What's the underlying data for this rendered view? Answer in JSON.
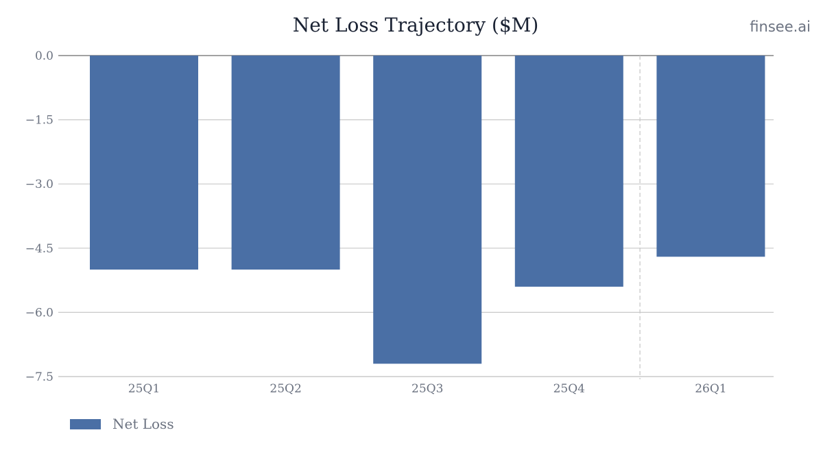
{
  "title": "Net Loss Trajectory ($M)",
  "brand": "finsee.ai",
  "colors": {
    "bar": "#4a6fa5",
    "grid": "#c8c8c8",
    "zero_line": "#6b6b6b",
    "divider": "#c8c8c8",
    "text": "#6b7280",
    "title": "#1a2233"
  },
  "chart_data": {
    "type": "bar",
    "title": "Net Loss Trajectory ($M)",
    "xlabel": "",
    "ylabel": "",
    "categories": [
      "25Q1",
      "25Q2",
      "25Q3",
      "25Q4",
      "26Q1"
    ],
    "series": [
      {
        "name": "Net Loss",
        "values": [
          -5.0,
          -5.0,
          -7.2,
          -5.4,
          -4.7
        ]
      }
    ],
    "ylim": [
      -7.5,
      0.0
    ],
    "yticks": [
      "0.0",
      "−1.5",
      "−3.0",
      "−4.5",
      "−6.0",
      "−7.5"
    ],
    "ytick_values": [
      0.0,
      -1.5,
      -3.0,
      -4.5,
      -6.0,
      -7.5
    ],
    "grid": true,
    "legend": "bottom-left",
    "divider_between": [
      "25Q4",
      "26Q1"
    ]
  }
}
